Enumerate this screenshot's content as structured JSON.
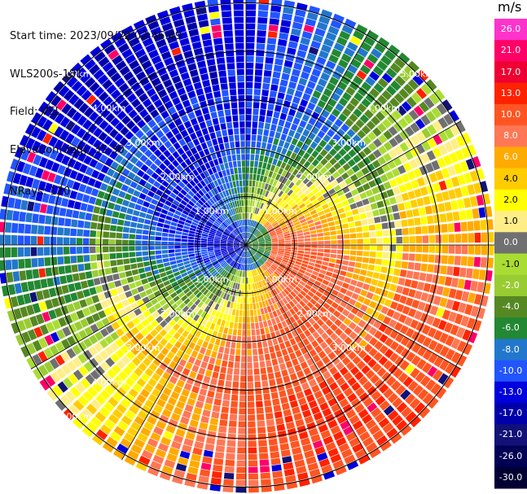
{
  "header": {
    "start_time": "Start time: 2023/09/22 02:46:49",
    "instrument": "WLS200s-181",
    "field": "Field: VEL",
    "elevation": "Elevation(deg): 35.30",
    "nrays": "NRays: 120"
  },
  "colorbar": {
    "unit": "m/s",
    "ticks": [
      "26.0",
      "21.0",
      "17.0",
      "13.0",
      "10.0",
      "8.0",
      "6.0",
      "4.0",
      "2.0",
      "1.0",
      "0.0",
      "-1.0",
      "-2.0",
      "-4.0",
      "-6.0",
      "-8.0",
      "-10.0",
      "-13.0",
      "-17.0",
      "-21.0",
      "-26.0",
      "-30.0"
    ],
    "colors": [
      "#ff33cc",
      "#ff0066",
      "#ee0033",
      "#ff2200",
      "#ff5522",
      "#ff7755",
      "#ffaa00",
      "#ffcc00",
      "#ffff00",
      "#ffee88",
      "#707070",
      "#aadd33",
      "#99cc33",
      "#558822",
      "#228833",
      "#2277cc",
      "#2255ff",
      "#0000dd",
      "#0000aa",
      "#111177",
      "#000055",
      "#000033"
    ]
  },
  "chart_data": {
    "type": "heatmap",
    "projection": "polar (PPI)",
    "field": "VEL",
    "units": "m/s",
    "nrays": 120,
    "range_km": [
      0,
      5.6
    ],
    "range_rings_km": [
      1.0,
      2.0,
      3.0,
      4.0,
      5.0
    ],
    "ring_labels": [
      "1.00km",
      "2.00km",
      "3.00km",
      "4.00km",
      "5.00km"
    ],
    "azimuth_spokes_deg": [
      0,
      30,
      60,
      90,
      120,
      150,
      180,
      210,
      240,
      270,
      300,
      330
    ],
    "color_range": [
      -30,
      26
    ],
    "pattern": "dipole: positive (away) velocities to the east/northeast, negative (toward) velocities to the west/southwest, near-zero band curving through centre"
  }
}
